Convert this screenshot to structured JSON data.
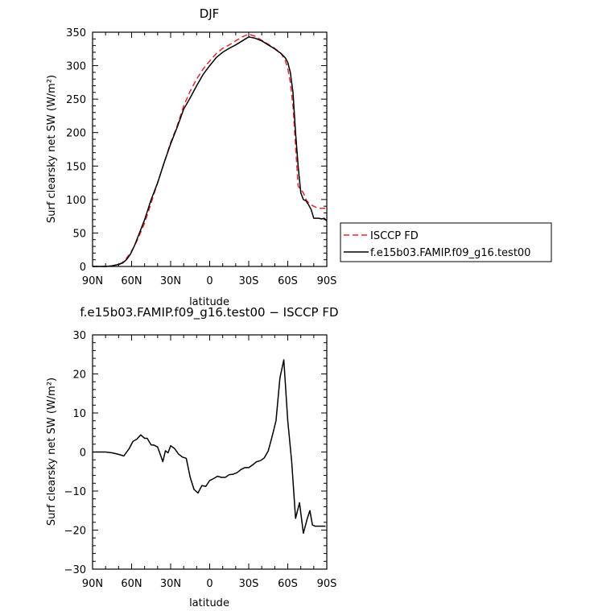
{
  "chart_data": [
    {
      "type": "line",
      "title": "DJF",
      "xlabel": "latitude",
      "ylabel": "Surf clearsky net SW (W/m²)",
      "xlim": [
        90,
        -90
      ],
      "ylim": [
        0,
        350
      ],
      "x_ticks": [
        {
          "value": 90,
          "label": "90N"
        },
        {
          "value": 60,
          "label": "60N"
        },
        {
          "value": 30,
          "label": "30N"
        },
        {
          "value": 0,
          "label": "0"
        },
        {
          "value": -30,
          "label": "30S"
        },
        {
          "value": -60,
          "label": "60S"
        },
        {
          "value": -90,
          "label": "90S"
        }
      ],
      "y_ticks": [
        0,
        50,
        100,
        150,
        200,
        250,
        300,
        350
      ],
      "legend_position": "right",
      "series": [
        {
          "name": "ISCCP FD",
          "color": "#e8272b",
          "dash": "dashed",
          "x": [
            90,
            85,
            80,
            75,
            70,
            67,
            64,
            61,
            58,
            55,
            50,
            45,
            40,
            35,
            30,
            25,
            20,
            15,
            10,
            5,
            0,
            -5,
            -10,
            -15,
            -20,
            -25,
            -30,
            -35,
            -40,
            -45,
            -50,
            -55,
            -58,
            -60,
            -62,
            -64,
            -66,
            -68,
            -70,
            -72,
            -74,
            -76,
            -78,
            -80,
            -82,
            -84,
            -86,
            -88,
            -90
          ],
          "y": [
            0,
            0,
            0,
            1,
            3,
            6,
            12,
            20,
            30,
            42,
            65,
            95,
            125,
            155,
            185,
            210,
            240,
            262,
            280,
            295,
            307,
            318,
            326,
            331,
            337,
            343,
            347,
            344,
            338,
            332,
            326,
            318,
            308,
            296,
            275,
            240,
            180,
            120,
            115,
            110,
            100,
            95,
            92,
            90,
            88,
            87,
            87,
            87,
            87
          ]
        },
        {
          "name": "f.e15b03.FAMIP.f09_g16.test00",
          "color": "#000000",
          "dash": "solid",
          "x": [
            90,
            85,
            80,
            75,
            70,
            67,
            64,
            61,
            58,
            55,
            50,
            45,
            40,
            35,
            30,
            25,
            20,
            15,
            10,
            5,
            0,
            -5,
            -10,
            -15,
            -20,
            -25,
            -30,
            -35,
            -40,
            -45,
            -50,
            -55,
            -58,
            -60,
            -62,
            -64,
            -66,
            -68,
            -70,
            -72,
            -74,
            -76,
            -78,
            -80,
            -82,
            -84,
            -86,
            -88,
            -90
          ],
          "y": [
            0,
            0,
            0,
            1,
            3,
            5,
            10,
            18,
            30,
            45,
            70,
            100,
            125,
            155,
            183,
            208,
            235,
            252,
            270,
            287,
            300,
            312,
            320,
            326,
            331,
            337,
            343,
            341,
            337,
            331,
            325,
            318,
            312,
            305,
            290,
            260,
            200,
            150,
            110,
            100,
            98,
            92,
            85,
            72,
            72,
            72,
            71,
            72,
            68
          ]
        }
      ]
    },
    {
      "type": "line",
      "title": "f.e15b03.FAMIP.f09_g16.test00 − ISCCP FD",
      "xlabel": "latitude",
      "ylabel": "Surf clearsky net SW (W/m²)",
      "xlim": [
        90,
        -90
      ],
      "ylim": [
        -30,
        30
      ],
      "x_ticks": [
        {
          "value": 90,
          "label": "90N"
        },
        {
          "value": 60,
          "label": "60N"
        },
        {
          "value": 30,
          "label": "30N"
        },
        {
          "value": 0,
          "label": "0"
        },
        {
          "value": -30,
          "label": "30S"
        },
        {
          "value": -60,
          "label": "60S"
        },
        {
          "value": -90,
          "label": "90S"
        }
      ],
      "y_ticks": [
        -30,
        -20,
        -10,
        0,
        10,
        20,
        30
      ],
      "series": [
        {
          "color": "#000000",
          "dash": "solid",
          "x": [
            90,
            85,
            80,
            75,
            70,
            66,
            62,
            59,
            56,
            53,
            50,
            48,
            45,
            43,
            40,
            38,
            36,
            34,
            32,
            30,
            27,
            24,
            21,
            18,
            15,
            12,
            9,
            6,
            3,
            0,
            -3,
            -6,
            -9,
            -12,
            -15,
            -18,
            -21,
            -24,
            -27,
            -30,
            -33,
            -36,
            -39,
            -42,
            -45,
            -48,
            -51,
            -54,
            -57,
            -60,
            -63,
            -66,
            -69,
            -72,
            -75,
            -77,
            -79,
            -81,
            -83,
            -85,
            -87,
            -89
          ],
          "y": [
            0,
            0,
            0,
            -0.2,
            -0.6,
            -1,
            0.8,
            2.7,
            3.3,
            4.4,
            3.5,
            3.5,
            1.8,
            1.8,
            1.3,
            -0.6,
            -2.5,
            0.3,
            -0.2,
            1.6,
            0.9,
            -0.5,
            -1.3,
            -1.6,
            -6.5,
            -9.6,
            -10.5,
            -8.6,
            -8.8,
            -7.3,
            -6.8,
            -6.2,
            -6.5,
            -6.5,
            -5.8,
            -5.7,
            -5.3,
            -4.5,
            -4.0,
            -4.0,
            -3.3,
            -2.5,
            -2.2,
            -1.5,
            0.3,
            4.0,
            8.0,
            19.0,
            23.6,
            8.0,
            -2.5,
            -17.0,
            -13.0,
            -20.8,
            -17.0,
            -15.0,
            -18.7,
            -19.0,
            -19.0,
            -19.0,
            -19.0,
            -19.0
          ]
        }
      ]
    }
  ]
}
